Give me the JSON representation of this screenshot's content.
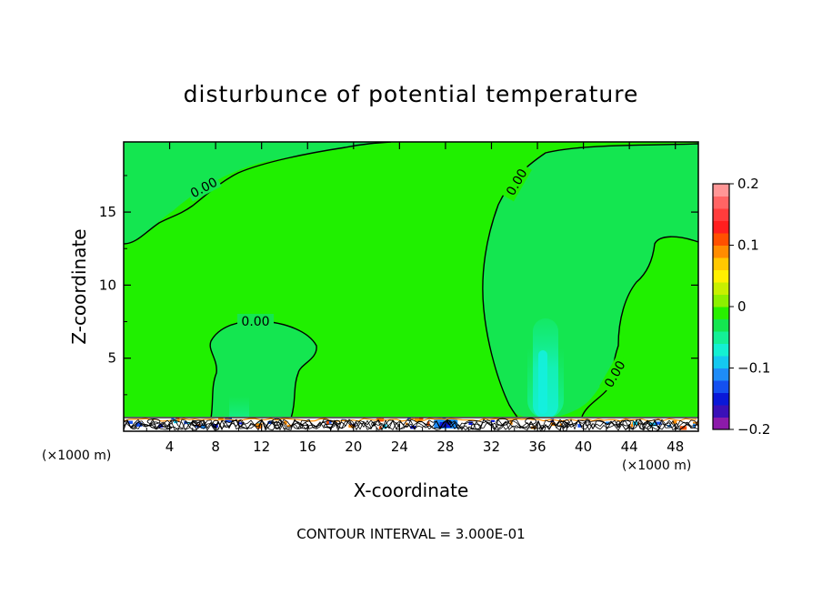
{
  "chart_data": {
    "type": "heatmap",
    "title": "disturbunce of potential temperature",
    "xlabel": "X-coordinate",
    "ylabel": "Z-coordinate",
    "x_unit": "(×1000 m)",
    "y_unit": "(×1000 m)",
    "xlim": [
      0,
      50
    ],
    "ylim": [
      0,
      19.8
    ],
    "x_ticks": [
      4,
      8,
      12,
      16,
      20,
      24,
      28,
      32,
      36,
      40,
      44,
      48
    ],
    "y_ticks": [
      5,
      10,
      15
    ],
    "contour_note": "CONTOUR INTERVAL = 3.000E-01",
    "contour_labels": [
      "0.00",
      "0.00",
      "0.00",
      "0.00"
    ],
    "colorbar": {
      "range": [
        -0.2,
        0.2
      ],
      "tick_values": [
        0.2,
        0.1,
        0,
        -0.1,
        -0.2
      ],
      "tick_labels": [
        "0.2",
        "0.1",
        "0",
        "−0.1",
        "−0.2"
      ],
      "colors": [
        "#8c1aaa",
        "#3a10b8",
        "#0a18d8",
        "#1450f0",
        "#1e8cf8",
        "#14c8f0",
        "#14f0d2",
        "#14f096",
        "#14e650",
        "#28f000",
        "#8cf000",
        "#c8f000",
        "#fff000",
        "#ffc800",
        "#ff8c00",
        "#ff5000",
        "#ff1e1e",
        "#ff3c3c",
        "#ff6464",
        "#ff9696"
      ]
    },
    "background_value": 0.01,
    "field_colors": {
      "near_zero_positive": "#20f000",
      "near_zero_negative": "#14e650",
      "weak_negative": "#14f096",
      "negative_core": "#14f0d2"
    }
  }
}
